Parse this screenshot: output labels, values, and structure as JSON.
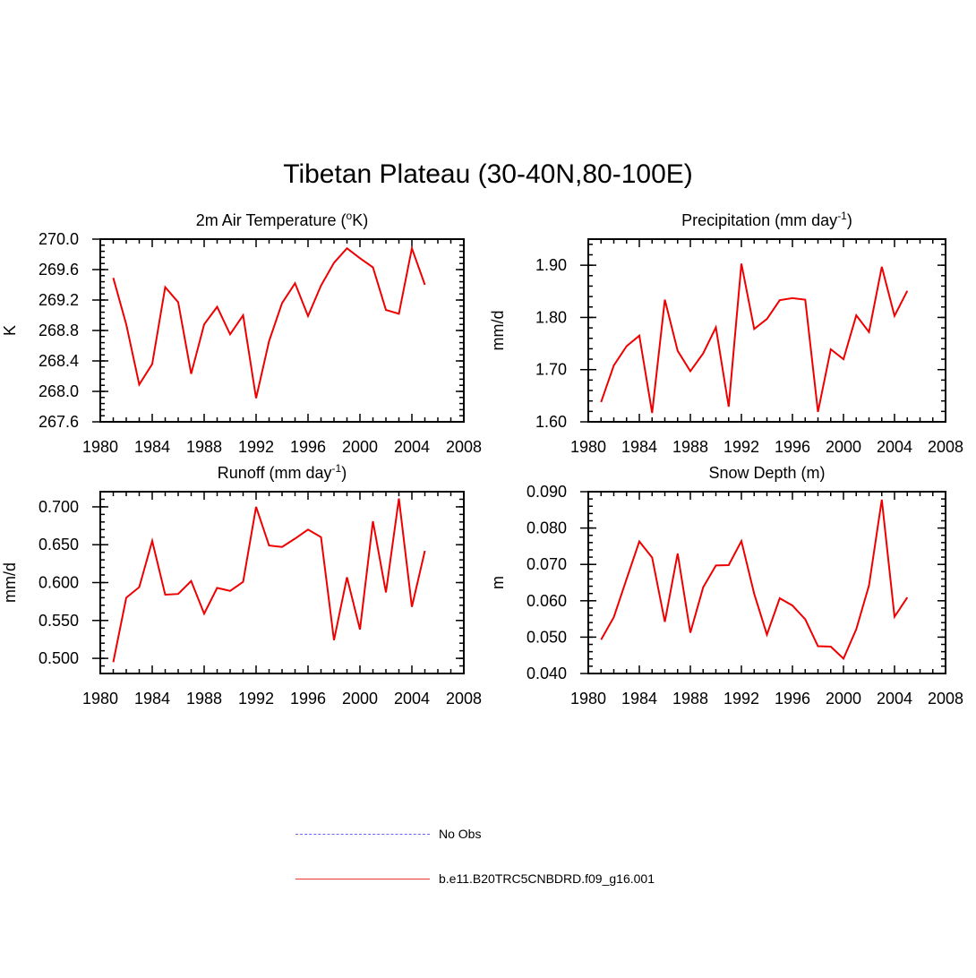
{
  "page": {
    "title": "Tibetan Plateau (30-40N,80-100E)"
  },
  "legend": [
    {
      "label": "No Obs",
      "style": "dashed",
      "color": "#6666ff"
    },
    {
      "label": "b.e11.B20TRC5CNBDRD.f09_g16.001",
      "style": "solid",
      "color": "#ee3333"
    }
  ],
  "chart_data": [
    {
      "type": "line",
      "title": "2m Air Temperature (°K)",
      "ylabel": "K",
      "xlim": [
        1980,
        2008
      ],
      "xticks": [
        1980,
        1984,
        1988,
        1992,
        1996,
        2000,
        2004,
        2008
      ],
      "ylim": [
        267.6,
        270.0
      ],
      "yticks": [
        "267.6",
        "268.0",
        "268.4",
        "268.8",
        "269.2",
        "269.6",
        "270.0"
      ],
      "series": [
        {
          "color": "#ee0000",
          "x": [
            1981,
            1982,
            1983,
            1984,
            1985,
            1986,
            1987,
            1988,
            1989,
            1990,
            1991,
            1992,
            1993,
            1994,
            1995,
            1996,
            1997,
            1998,
            1999,
            2000,
            2001,
            2002,
            2003,
            2004,
            2005
          ],
          "y": [
            269.49,
            268.88,
            268.09,
            268.36,
            269.37,
            269.17,
            268.23,
            268.88,
            269.11,
            268.75,
            269.0,
            267.91,
            268.66,
            269.16,
            269.42,
            268.99,
            269.39,
            269.69,
            269.88,
            269.75,
            269.63,
            269.07,
            269.02,
            269.88,
            269.4
          ]
        }
      ]
    },
    {
      "type": "line",
      "title": "Precipitation (mm day-1)",
      "ylabel": "mm/d",
      "xlim": [
        1980,
        2008
      ],
      "xticks": [
        1980,
        1984,
        1988,
        1992,
        1996,
        2000,
        2004,
        2008
      ],
      "ylim": [
        1.6,
        1.95
      ],
      "yticks": [
        "1.60",
        "1.70",
        "1.80",
        "1.90"
      ],
      "series": [
        {
          "color": "#ee0000",
          "x": [
            1981,
            1982,
            1983,
            1984,
            1985,
            1986,
            1987,
            1988,
            1989,
            1990,
            1991,
            1992,
            1993,
            1994,
            1995,
            1996,
            1997,
            1998,
            1999,
            2000,
            2001,
            2002,
            2003,
            2004,
            2005
          ],
          "y": [
            1.638,
            1.708,
            1.745,
            1.765,
            1.617,
            1.834,
            1.736,
            1.697,
            1.731,
            1.781,
            1.629,
            1.903,
            1.778,
            1.797,
            1.833,
            1.837,
            1.834,
            1.619,
            1.739,
            1.72,
            1.804,
            1.772,
            1.897,
            1.803,
            1.851
          ]
        }
      ]
    },
    {
      "type": "line",
      "title": "Runoff (mm day-1)",
      "ylabel": "mm/d",
      "xlim": [
        1980,
        2008
      ],
      "xticks": [
        1980,
        1984,
        1988,
        1992,
        1996,
        2000,
        2004,
        2008
      ],
      "ylim": [
        0.48,
        0.72
      ],
      "yticks": [
        "0.500",
        "0.550",
        "0.600",
        "0.650",
        "0.700"
      ],
      "series": [
        {
          "color": "#ee0000",
          "x": [
            1981,
            1982,
            1983,
            1984,
            1985,
            1986,
            1987,
            1988,
            1989,
            1990,
            1991,
            1992,
            1993,
            1994,
            1995,
            1996,
            1997,
            1998,
            1999,
            2000,
            2001,
            2002,
            2003,
            2004,
            2005
          ],
          "y": [
            0.495,
            0.58,
            0.594,
            0.655,
            0.584,
            0.585,
            0.602,
            0.559,
            0.593,
            0.589,
            0.601,
            0.7,
            0.649,
            0.647,
            0.658,
            0.67,
            0.66,
            0.524,
            0.607,
            0.538,
            0.681,
            0.587,
            0.711,
            0.568,
            0.642
          ]
        }
      ]
    },
    {
      "type": "line",
      "title": "Snow Depth (m)",
      "ylabel": "m",
      "xlim": [
        1980,
        2008
      ],
      "xticks": [
        1980,
        1984,
        1988,
        1992,
        1996,
        2000,
        2004,
        2008
      ],
      "ylim": [
        0.04,
        0.09
      ],
      "yticks": [
        "0.040",
        "0.050",
        "0.060",
        "0.070",
        "0.080",
        "0.090"
      ],
      "series": [
        {
          "color": "#ee0000",
          "x": [
            1981,
            1982,
            1983,
            1984,
            1985,
            1986,
            1987,
            1988,
            1989,
            1990,
            1991,
            1992,
            1993,
            1994,
            1995,
            1996,
            1997,
            1998,
            1999,
            2000,
            2001,
            2002,
            2003,
            2004,
            2005
          ],
          "y": [
            0.0493,
            0.0555,
            0.066,
            0.0763,
            0.0719,
            0.0542,
            0.073,
            0.0512,
            0.0637,
            0.0697,
            0.0698,
            0.0764,
            0.0619,
            0.0507,
            0.0607,
            0.0587,
            0.0549,
            0.0475,
            0.0474,
            0.0441,
            0.0522,
            0.0642,
            0.0878,
            0.0556,
            0.0609
          ]
        }
      ]
    }
  ]
}
